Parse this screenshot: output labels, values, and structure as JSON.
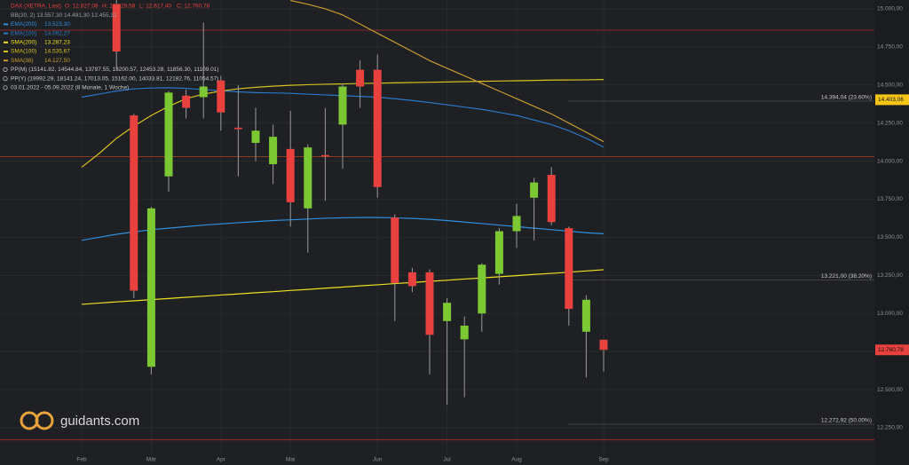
{
  "chart_data": {
    "type": "candlestick",
    "title": "DAX (XETRA, Last)",
    "header_labels": [
      "O: 12.827,08",
      "H: 12.829,58",
      "L: 12.617,40",
      "C: 12.760,78"
    ],
    "indicators": [
      "BB(20, 2)  13.557,30  14.491,30  12.455,31"
    ],
    "pivots": [
      "PP(M)  (15141.82, 14544.84, 13797.55, 13200.57, 12453.28, 11856.30, 11109.01)",
      "PP(Y)  (19992.29, 18141.24, 17013.05, 15162.00, 14033.81, 12182.76, 11054.57)"
    ],
    "date_range": "03.01.2022 - 05.09.2022  (8 Monate, 1 Woche)",
    "brand": "guidants.com",
    "categories": [
      "Feb",
      null,
      null,
      null,
      "Mär",
      null,
      null,
      null,
      "Apr",
      null,
      null,
      null,
      "Mai",
      null,
      null,
      null,
      null,
      "Jun",
      null,
      null,
      null,
      "Jul",
      null,
      null,
      null,
      "Aug",
      null,
      null,
      null,
      null,
      "Sep"
    ],
    "open": [
      null,
      null,
      15030,
      14300,
      12650,
      13900,
      14430,
      14420,
      14530,
      14220,
      14120,
      13980,
      14080,
      13690,
      14040,
      14240,
      14600,
      14600,
      13630,
      13270,
      13270,
      12950,
      12830,
      13000,
      13260,
      13540,
      13760,
      13910,
      13560,
      12880,
      12827.08
    ],
    "high": [
      null,
      null,
      15058,
      14310,
      13700,
      14460,
      14470,
      14910,
      14560,
      14500,
      14350,
      14240,
      14330,
      14110,
      14350,
      14510,
      14660,
      14700,
      13650,
      13300,
      13290,
      13100,
      12980,
      13330,
      13560,
      13720,
      13890,
      13960,
      13570,
      13120,
      12829.58
    ],
    "low": [
      null,
      null,
      14600,
      13100,
      12600,
      13800,
      14280,
      14280,
      14200,
      13900,
      14000,
      13850,
      13570,
      13400,
      13740,
      13950,
      14350,
      13760,
      12950,
      13140,
      12600,
      12400,
      12450,
      12880,
      13190,
      13430,
      13480,
      13580,
      12920,
      12580,
      12617.4
    ],
    "close": [
      null,
      null,
      14720,
      13150,
      13690,
      14450,
      14350,
      14490,
      14320,
      14210,
      14200,
      14160,
      13730,
      14090,
      14030,
      14490,
      14490,
      13830,
      13200,
      13180,
      12860,
      13070,
      12920,
      13320,
      13540,
      13640,
      13860,
      13600,
      13030,
      13090,
      12760.78
    ],
    "up_color": "#7cc832",
    "down_color": "#e8413e",
    "series": [
      {
        "name": "EMA(200)",
        "color": "#2f8fe0",
        "value_label": "13.523,30",
        "values": [
          13480,
          13500,
          13520,
          13535,
          13550,
          13560,
          13570,
          13580,
          13588,
          13596,
          13603,
          13610,
          13615,
          13620,
          13625,
          13628,
          13630,
          13630,
          13628,
          13624,
          13618,
          13610,
          13600,
          13590,
          13580,
          13570,
          13560,
          13550,
          13540,
          13530,
          13523.3
        ]
      },
      {
        "name": "EMA(100)",
        "color": "#2a78c8",
        "value_label": "14.092,27",
        "values": [
          14420,
          14440,
          14460,
          14475,
          14480,
          14482,
          14478,
          14470,
          14462,
          14455,
          14450,
          14448,
          14445,
          14440,
          14435,
          14430,
          14425,
          14420,
          14410,
          14398,
          14385,
          14370,
          14355,
          14340,
          14320,
          14300,
          14270,
          14240,
          14200,
          14150,
          14092.27
        ]
      },
      {
        "name": "SMA(200)",
        "color": "#f0e020",
        "value_label": "13.287,23",
        "values": [
          13060,
          13068,
          13076,
          13083,
          13091,
          13098,
          13106,
          13113,
          13121,
          13128,
          13136,
          13143,
          13151,
          13158,
          13166,
          13173,
          13181,
          13188,
          13196,
          13203,
          13211,
          13218,
          13226,
          13233,
          13241,
          13248,
          13256,
          13263,
          13271,
          13279,
          13287.23
        ]
      },
      {
        "name": "SMA(100)",
        "color": "#d8c020",
        "value_label": "14.535,67",
        "values": [
          13960,
          14050,
          14150,
          14230,
          14300,
          14360,
          14410,
          14440,
          14460,
          14475,
          14485,
          14492,
          14498,
          14502,
          14505,
          14507,
          14510,
          14512,
          14514,
          14516,
          14518,
          14520,
          14522,
          14524,
          14526,
          14528,
          14530,
          14532,
          14533,
          14534,
          14535.67
        ]
      },
      {
        "name": "SMA(38)",
        "color": "#c89a30",
        "value_label": "14.127,50",
        "values": [
          null,
          null,
          null,
          null,
          null,
          null,
          null,
          null,
          null,
          null,
          null,
          null,
          15055,
          15030,
          15000,
          14960,
          14900,
          14840,
          14780,
          14720,
          14660,
          14610,
          14560,
          14510,
          14460,
          14410,
          14360,
          14310,
          14250,
          14190,
          14127.5
        ]
      }
    ],
    "levels": [
      {
        "value": 14860,
        "color": "#8a2a2a"
      },
      {
        "value": 14030,
        "color": "#8a3a20"
      },
      {
        "value": 12170,
        "color": "#a02828"
      }
    ],
    "fib_labels": [
      {
        "value": 14394.04,
        "label": "14.394,04 (23.60%)"
      },
      {
        "value": 13221,
        "label": "13.221,00 (38.20%)"
      },
      {
        "value": 12272.92,
        "label": "12.272,92 (50.00%)"
      }
    ],
    "price_tags": [
      {
        "value": 14403.06,
        "label": "14.403,06",
        "color": "#f5c518"
      },
      {
        "value": 12760.78,
        "label": "12.760,78",
        "color": "#e8413e"
      }
    ],
    "ylim": [
      12005,
      15058
    ],
    "yticks": [
      {
        "value": 12250,
        "label": "12.250,00"
      },
      {
        "value": 12500,
        "label": "12.500,00"
      },
      {
        "value": 12750,
        "label": "12.750,00"
      },
      {
        "value": 13000,
        "label": "13.000,00"
      },
      {
        "value": 13250,
        "label": "13.250,00"
      },
      {
        "value": 13500,
        "label": "13.500,00"
      },
      {
        "value": 13750,
        "label": "13.750,00"
      },
      {
        "value": 14000,
        "label": "14.000,00"
      },
      {
        "value": 14250,
        "label": "14.250,00"
      },
      {
        "value": 14500,
        "label": "14.500,00"
      },
      {
        "value": 14750,
        "label": "14.750,00"
      },
      {
        "value": 15000,
        "label": "15.000,00"
      }
    ],
    "grid": true
  }
}
